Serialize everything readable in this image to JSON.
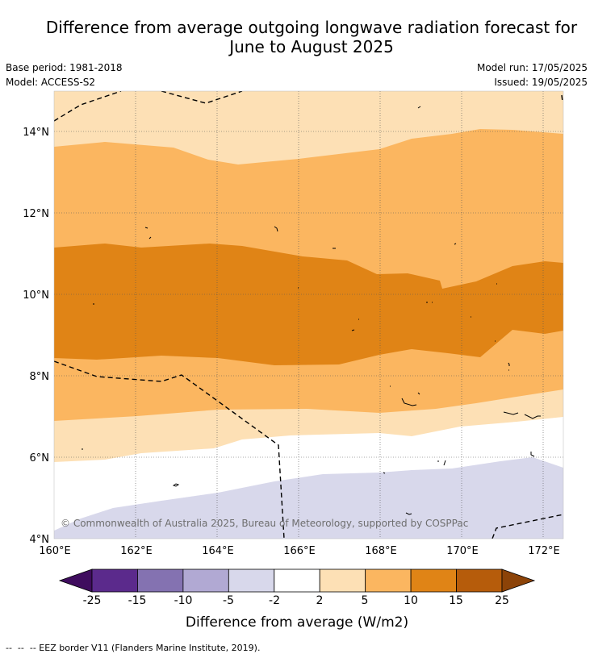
{
  "header": {
    "title_line1": "Difference from average outgoing longwave radiation forecast for",
    "title_line2": "June to August 2025",
    "base_period": "Base period: 1981-2018",
    "model": "Model: ACCESS-S2",
    "model_run": "Model run: 17/05/2025",
    "issued": "Issued: 19/05/2025"
  },
  "map": {
    "lon_labels": [
      "160°E",
      "162°E",
      "164°E",
      "166°E",
      "168°E",
      "170°E",
      "172°E"
    ],
    "lat_labels": [
      "14°N",
      "12°N",
      "10°N",
      "8°N",
      "6°N",
      "4°N"
    ],
    "copyright": "© Commonwealth of Australia 2025, Bureau of Meteorology, supported by COSPPac"
  },
  "colorbar": {
    "ticks": [
      "-25",
      "-15",
      "-10",
      "-5",
      "-2",
      "2",
      "5",
      "10",
      "15",
      "25"
    ],
    "colors": [
      "#3f0c5e",
      "#5b2a8c",
      "#8472b1",
      "#b1a9d3",
      "#d8d8eb",
      "#ffffff",
      "#fde0b5",
      "#fbb660",
      "#e08416",
      "#b65c0b",
      "#8c4308"
    ],
    "label": "Difference from average (W/m2)"
  },
  "footer": {
    "eez_note": "--  --  -- EEZ border V11 (Flanders Marine Institute, 2019)."
  }
}
